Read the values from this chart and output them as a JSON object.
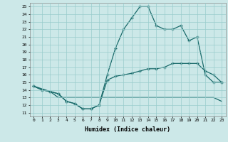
{
  "xlabel": "Humidex (Indice chaleur)",
  "xlim": [
    -0.5,
    23.5
  ],
  "ylim": [
    10.5,
    25.5
  ],
  "xticks": [
    0,
    1,
    2,
    3,
    4,
    5,
    6,
    7,
    8,
    9,
    10,
    11,
    12,
    13,
    14,
    15,
    16,
    17,
    18,
    19,
    20,
    21,
    22,
    23
  ],
  "yticks": [
    11,
    12,
    13,
    14,
    15,
    16,
    17,
    18,
    19,
    20,
    21,
    22,
    23,
    24,
    25
  ],
  "bg_color": "#cce8e8",
  "line_color": "#1a6b6b",
  "line1_x": [
    0,
    1,
    2,
    3,
    4,
    5,
    6,
    7,
    8,
    9,
    10,
    11,
    12,
    13,
    14,
    15,
    16,
    17,
    18,
    19,
    20,
    21,
    22,
    23
  ],
  "line1_y": [
    14.5,
    14.0,
    13.8,
    13.5,
    12.5,
    12.2,
    11.5,
    11.5,
    12.0,
    16.0,
    19.5,
    22.0,
    23.5,
    25.0,
    25.0,
    22.5,
    22.0,
    22.0,
    22.5,
    20.5,
    21.0,
    16.0,
    15.0,
    15.0
  ],
  "line1_markers": [
    0,
    1,
    2,
    3,
    4,
    5,
    6,
    7,
    8,
    9,
    10,
    11,
    12,
    13,
    14,
    15,
    16,
    17,
    18,
    19,
    20,
    21,
    22,
    23
  ],
  "line2_x": [
    0,
    1,
    2,
    3,
    4,
    5,
    6,
    7,
    8,
    9,
    10,
    11,
    12,
    13,
    14,
    15,
    16,
    17,
    18,
    19,
    20,
    21,
    22,
    23
  ],
  "line2_y": [
    14.5,
    14.0,
    13.8,
    13.5,
    12.5,
    12.2,
    11.5,
    11.5,
    12.0,
    15.3,
    15.8,
    16.0,
    16.2,
    16.5,
    16.8,
    16.8,
    17.0,
    17.5,
    17.5,
    17.5,
    17.5,
    16.5,
    16.0,
    15.0
  ],
  "line2_markers": [
    0,
    1,
    2,
    3,
    4,
    5,
    6,
    7,
    8,
    9,
    10,
    11,
    12,
    13,
    14,
    15,
    16,
    17,
    18,
    19,
    20,
    21,
    22,
    23
  ],
  "line3_x": [
    0,
    2,
    3,
    21,
    22,
    23
  ],
  "line3_y": [
    14.5,
    13.8,
    13.0,
    13.0,
    13.0,
    12.5
  ],
  "grid_color": "#99cccc",
  "marker": "+"
}
